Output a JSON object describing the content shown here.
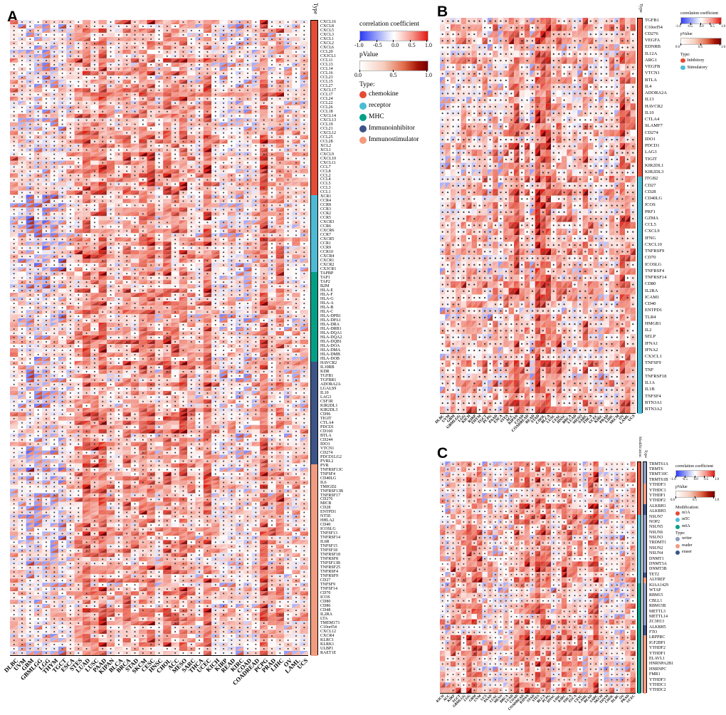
{
  "figure_type": "pan-cancer immune correlation split-triangle heatmaps",
  "panels": {
    "a": {
      "label": "A"
    },
    "b": {
      "label": "B"
    },
    "c": {
      "label": "C"
    }
  },
  "colors": {
    "corr_negative_end": "#2d3cf5",
    "corr_positive_end": "#e21812",
    "pvalue_dark_end": "#760202",
    "dot": "#333333",
    "chemokine": "#E64B35",
    "receptor": "#4DBBD5",
    "mhc": "#00A087",
    "immunoinhibitor": "#3C5488",
    "immunostimulator": "#F39B7F",
    "inhibitory": "#E64B35",
    "stimulatory": "#4DBBD5",
    "m1A": "#E64B35",
    "m5C": "#4DBBD5",
    "m6A": "#00A087",
    "writer": "#8C9BC2",
    "reader": "#F39B7F",
    "eraser": "#3C5488"
  },
  "chart_data": [
    {
      "panel": "A",
      "type": "heatmap",
      "cell_glyph": "square split on the anti-diagonal: upper-left triangle = correlation coefficient (blue-white-red), lower-right triangle = p value (white to dark red), centered black dot = non-significant cell",
      "rows": [
        "CXCL16",
        "CXCL8",
        "CXCL5",
        "CXCL3",
        "CXCL1",
        "CXCL2",
        "CXCL6",
        "CCL20",
        "CX3CL1",
        "CCL11",
        "CCL13",
        "CCL14",
        "CCL16",
        "CCL23",
        "CCL15",
        "CCL27",
        "CXCL17",
        "CCL17",
        "CCL24",
        "CCL22",
        "CCL26",
        "CCL18",
        "CXCL14",
        "CXCL13",
        "CCL19",
        "CCL21",
        "CXCL12",
        "CCL25",
        "CCL28",
        "XCL2",
        "XCL1",
        "CXCL9",
        "CXCL10",
        "CXCL11",
        "CCL7",
        "CCL8",
        "CCL2",
        "CCL4",
        "CCL5",
        "CCL3",
        "CCL1",
        "XCR1",
        "CCR4",
        "CCR8",
        "CCR3",
        "CCR2",
        "CCR5",
        "CXCR3",
        "CCR6",
        "CXCR6",
        "CCR7",
        "CXCR5",
        "CCR1",
        "CCR9",
        "CCR10",
        "CXCR4",
        "CXCR1",
        "CXCR2",
        "CX3CR1",
        "TAPBP",
        "TAP1",
        "TAP2",
        "B2M",
        "HLA-E",
        "HLA-F",
        "HLA-G",
        "HLA-A",
        "HLA-B",
        "HLA-C",
        "HLA-DPB1",
        "HLA-DPA1",
        "HLA-DRA",
        "HLA-DRB1",
        "HLA-DQA1",
        "HLA-DQA2",
        "HLA-DQB1",
        "HLA-DOA",
        "HLA-DMA",
        "HLA-DMB",
        "HLA-DOB",
        "HAVCR2",
        "IL10RB",
        "KDR",
        "TGFB1",
        "TGFBR1",
        "ADORA2A",
        "LGALS9",
        "IL10",
        "LAG3",
        "CSF1R",
        "KIR2DL1",
        "KIR2DL3",
        "CD96",
        "TIGIT",
        "CTLA4",
        "PDCD1",
        "CD160",
        "BTLA",
        "CD244",
        "IDO1",
        "VTCN1",
        "CD274",
        "PDCD1LG2",
        "PVRL2",
        "PVR",
        "TNFRSF13C",
        "TNFSF4",
        "CD40LG",
        "IL6",
        "TMIGD2",
        "TNFRSF13B",
        "TNFRSF17",
        "CD276",
        "MICB",
        "CD28",
        "ENTPD1",
        "NT5E",
        "HHLA2",
        "CD40",
        "ICOSLG",
        "TNFSF13",
        "TNFRSF14",
        "IL6R",
        "TNFSF15",
        "TNFSF18",
        "TNFRSF18",
        "TNFRSF8",
        "TNFSF13B",
        "TNFRSF25",
        "TNFRSF4",
        "TNFRSF9",
        "CD27",
        "TNFSF9",
        "TNFSF14",
        "CD70",
        "ICOS",
        "CD80",
        "CD86",
        "CD48",
        "IL2RA",
        "LTA",
        "TMEM173",
        "C10orf54",
        "CXCL12",
        "CXCR4",
        "KLRC1",
        "KLRK1",
        "ULBP1",
        "RAET1E"
      ],
      "columns": [
        "DLBC",
        "UVM",
        "GBM",
        "GBMLGG",
        "LGG",
        "THYM",
        "TGCT",
        "ESCA",
        "STES",
        "LUAD",
        "LUSC",
        "PAAD",
        "KIPAN",
        "BLCA",
        "BRCA",
        "STAD",
        "SKCM",
        "CESC",
        "HNSC",
        "CHOL",
        "ACC",
        "MESO",
        "SARC",
        "THCA",
        "UCEC",
        "KICH",
        "KIRP",
        "READ",
        "KIRC",
        "COAD",
        "COADREAD",
        "PCPG",
        "PRAD",
        "LIHC",
        "OV",
        "LAML",
        "UCS"
      ],
      "row_annotation": {
        "title": "Type",
        "blocks": [
          {
            "label": "chemokine",
            "color": "#E64B35",
            "rows": 41
          },
          {
            "label": "receptor",
            "color": "#4DBBD5",
            "rows": 18
          },
          {
            "label": "MHC",
            "color": "#00A087",
            "rows": 21
          },
          {
            "label": "Immunoinhibitor",
            "color": "#3C5488",
            "rows": 24
          },
          {
            "label": "Immunostimulator",
            "color": "#F39B7F",
            "rows": 45
          }
        ]
      },
      "legend": {
        "correlation": {
          "title": "correlation coefficient",
          "ticks": [
            "-1.0",
            "-0.5",
            "0.0",
            "0.5",
            "1.0"
          ],
          "range": [
            -1,
            1
          ]
        },
        "pvalue": {
          "title": "pValue",
          "ticks": [
            "0.0",
            "0.5",
            "1.0"
          ],
          "range": [
            0,
            1
          ]
        },
        "groups": [
          {
            "title": "Type:",
            "items": [
              {
                "label": "chemokine",
                "color": "#E64B35"
              },
              {
                "label": "receptor",
                "color": "#4DBBD5"
              },
              {
                "label": "MHC",
                "color": "#00A087"
              },
              {
                "label": "Immunoinhibitor",
                "color": "#3C5488"
              },
              {
                "label": "Immunostimulator",
                "color": "#F39B7F"
              }
            ]
          }
        ]
      },
      "seed": 13,
      "values_note": "individual cell values are not legible at source resolution; rendered from a seeded approximation of the visible pattern"
    },
    {
      "panel": "B",
      "type": "heatmap",
      "cell_glyph": "square split on the anti-diagonal: upper-left triangle = correlation coefficient (blue-white-red), lower-right triangle = p value (white to dark red), centered black dot = non-significant cell",
      "rows": [
        "TGFB1",
        "C10orf54",
        "CD276",
        "VEGFA",
        "EDNRB",
        "IL12A",
        "ARG1",
        "VEGFB",
        "VTCN1",
        "BTLA",
        "IL4",
        "ADORA2A",
        "IL13",
        "HAVCR2",
        "IL10",
        "CTLA4",
        "SLAMF7",
        "CD274",
        "IDO1",
        "PDCD1",
        "LAG3",
        "TIGIT",
        "KIR2DL1",
        "KIR2DL3",
        "ITGB2",
        "CD27",
        "CD28",
        "CD40LG",
        "ICOS",
        "PRF1",
        "GZMA",
        "CCL5",
        "CXCL9",
        "IFNG",
        "CXCL10",
        "TNFRSF9",
        "CD70",
        "ICOSLG",
        "TNFRSF4",
        "TNFRSF14",
        "CD80",
        "IL2RA",
        "ICAM1",
        "CD40",
        "ENTPD1",
        "TLR4",
        "HMGB1",
        "IL2",
        "SELP",
        "IFNA1",
        "IFNA2",
        "CX3CL1",
        "TNFSF9",
        "TNF",
        "TNFRSF18",
        "IL1A",
        "IL1B",
        "TNFSF4",
        "BTN3A1",
        "BTN3A2"
      ],
      "columns": [
        "DLBC",
        "UVM",
        "GBM",
        "GBMLGG",
        "LGG",
        "KICH",
        "KIRP",
        "THYM",
        "TGCT",
        "PCPG",
        "PAAD",
        "ESCA",
        "STES",
        "ACC",
        "KIPAN",
        "COAD",
        "COADREAD",
        "READ",
        "STAD",
        "CHOL",
        "BLCA",
        "LUSC",
        "CESC",
        "HNSC",
        "BRCA",
        "LUAD",
        "MESO",
        "SARC",
        "THCA",
        "UCEC",
        "KIRC",
        "PRAD",
        "LIHC",
        "SKCM",
        "OV",
        "LAML",
        "UCS"
      ],
      "row_annotation": {
        "title": "Type",
        "blocks": [
          {
            "label": "Inhibitory",
            "color": "#E64B35",
            "rows": 24
          },
          {
            "label": "Stimulatory",
            "color": "#4DBBD5",
            "rows": 36
          }
        ]
      },
      "legend": {
        "correlation": {
          "title": "correlation coefficient",
          "ticks": [
            "-1.0",
            "-0.5",
            "0.0",
            "0.5",
            "1.0"
          ],
          "range": [
            -1,
            1
          ]
        },
        "pvalue": {
          "title": "pValue",
          "ticks": [
            "0.0",
            "0.5",
            "1.0"
          ],
          "range": [
            0,
            1
          ]
        },
        "groups": [
          {
            "title": "Type:",
            "items": [
              {
                "label": "Inhibitory",
                "color": "#E64B35"
              },
              {
                "label": "Stimulatory",
                "color": "#4DBBD5"
              }
            ]
          }
        ]
      },
      "seed": 29,
      "values_note": "individual cell values are not legible at source resolution; rendered from a seeded approximation of the visible pattern"
    },
    {
      "panel": "C",
      "type": "heatmap",
      "cell_glyph": "square split on the anti-diagonal: upper-left triangle = correlation coefficient (blue-white-red), lower-right triangle = p value (white to dark red), centered black dot = non-significant cell",
      "rows": [
        "TRMT61A",
        "TRMT6",
        "TRMT10C",
        "TRMT61B",
        "YTHDF3",
        "YTHDC1",
        "YTHDF1",
        "YTHDF2",
        "ALKBH1",
        "ALKBH3",
        "NSUN7",
        "NOP2",
        "NSUN5",
        "NSUN6",
        "NSUN3",
        "TRDMT1",
        "NSUN2",
        "NSUN4",
        "DNMT1",
        "DNMT3A",
        "DNMT3B",
        "TET2",
        "ALYREF",
        "KIAA1429",
        "WTAP",
        "RBM15",
        "CBLL1",
        "RBM15B",
        "METTL3",
        "METTL14",
        "ZC3H13",
        "ALKBH5",
        "FTO",
        "LRPPRC",
        "IGF2BP1",
        "YTHDF2",
        "YTHDF1",
        "ELAVL1",
        "HNRNPA2B1",
        "HNRNPC",
        "FMR1",
        "YTHDF3",
        "YTHDC1",
        "YTHDC2"
      ],
      "columns": [
        "KICH",
        "ACC",
        "KIRP",
        "TGCT",
        "GBMLGG",
        "LGG",
        "GBM",
        "UVM",
        "UCS",
        "PAAD",
        "LUSC",
        "MESO",
        "BRCA",
        "LUAD",
        "COAD",
        "COADREAD",
        "KIPAN",
        "STAD",
        "STES",
        "BLCA",
        "PCPG",
        "HNSC",
        "LIHC",
        "KIRC",
        "THCA",
        "ESCA",
        "CESC",
        "LAML",
        "READ",
        "SARC",
        "SKCM",
        "THYM",
        "CHOL",
        "DLBC",
        "OV",
        "PRAD",
        "UCEC"
      ],
      "row_annotation": {
        "title": "Modification",
        "blocks": [
          {
            "label": "m1A",
            "color": "#E64B35",
            "rows": 10
          },
          {
            "label": "m5C",
            "color": "#4DBBD5",
            "rows": 13
          },
          {
            "label": "m6A",
            "color": "#00A087",
            "rows": 21
          }
        ]
      },
      "row_annotation_2": {
        "title": "Type",
        "per_row": [
          "writer",
          "writer",
          "writer",
          "writer",
          "reader",
          "reader",
          "reader",
          "reader",
          "eraser",
          "eraser",
          "writer",
          "writer",
          "writer",
          "writer",
          "writer",
          "writer",
          "writer",
          "writer",
          "writer",
          "writer",
          "writer",
          "eraser",
          "reader",
          "writer",
          "writer",
          "writer",
          "writer",
          "writer",
          "writer",
          "writer",
          "writer",
          "eraser",
          "eraser",
          "reader",
          "reader",
          "reader",
          "reader",
          "reader",
          "reader",
          "reader",
          "reader",
          "reader",
          "reader",
          "reader"
        ],
        "colors": {
          "writer": "#8C9BC2",
          "reader": "#F39B7F",
          "eraser": "#3C5488"
        }
      },
      "legend": {
        "correlation": {
          "title": "correlation coefficient",
          "ticks": [
            "-1.0",
            "-0.5",
            "0.0",
            "0.5",
            "1.0"
          ],
          "range": [
            -1,
            1
          ]
        },
        "pvalue": {
          "title": "pValue",
          "ticks": [
            "0.0",
            "0.5",
            "1.0"
          ],
          "range": [
            0,
            1
          ]
        },
        "groups": [
          {
            "title": "Modification:",
            "items": [
              {
                "label": "m1A",
                "color": "#E64B35"
              },
              {
                "label": "m5C",
                "color": "#4DBBD5"
              },
              {
                "label": "m6A",
                "color": "#00A087"
              }
            ]
          },
          {
            "title": "Type:",
            "items": [
              {
                "label": "writer",
                "color": "#8C9BC2"
              },
              {
                "label": "reader",
                "color": "#F39B7F"
              },
              {
                "label": "eraser",
                "color": "#3C5488"
              }
            ]
          }
        ]
      },
      "seed": 47,
      "values_note": "individual cell values are not legible at source resolution; rendered from a seeded approximation of the visible pattern"
    }
  ]
}
